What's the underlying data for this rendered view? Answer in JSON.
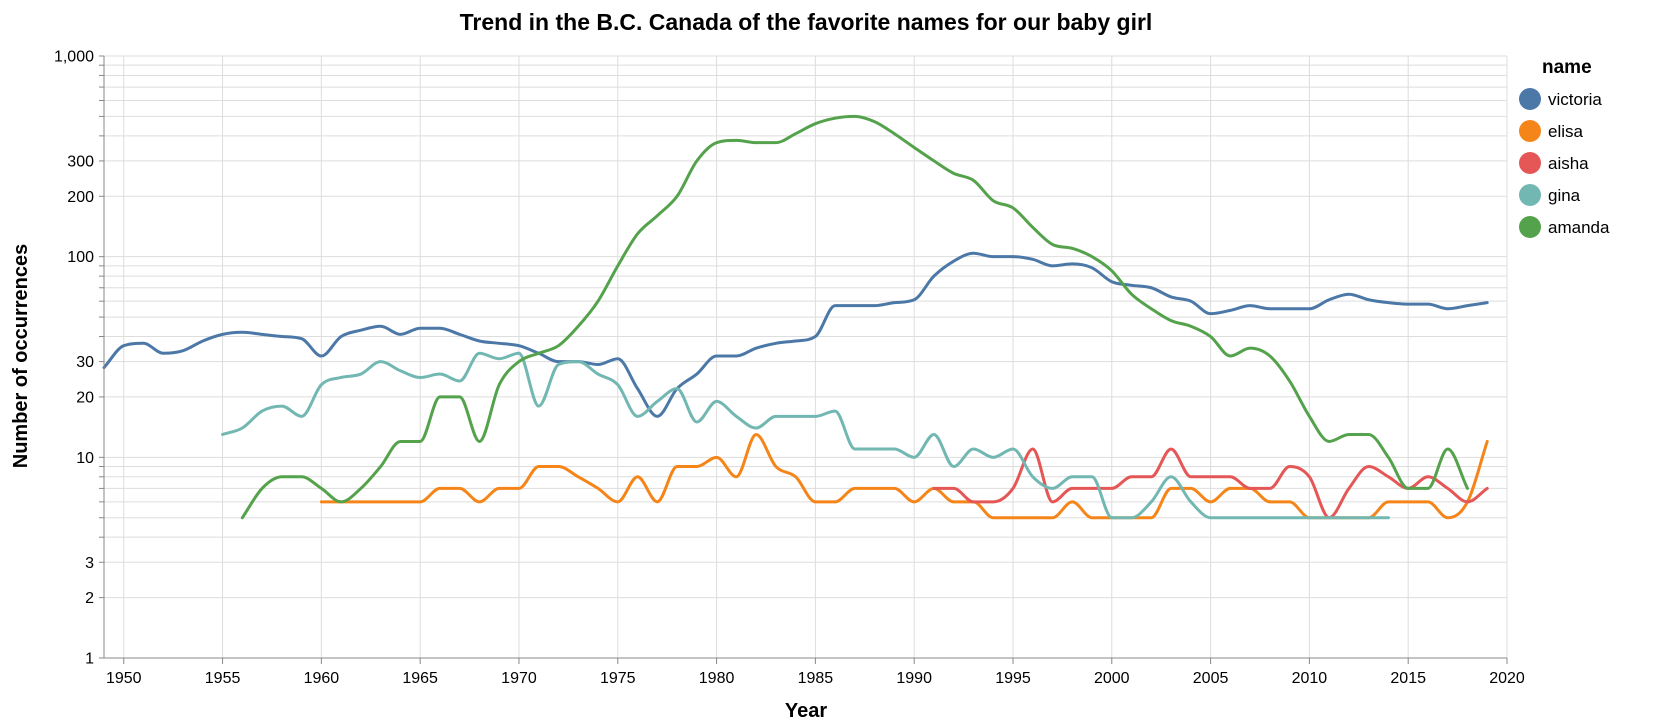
{
  "chart_data": {
    "type": "line",
    "title": "Trend in the B.C. Canada of the favorite names for our baby girl",
    "xlabel": "Year",
    "ylabel": "Number of occurrences",
    "xlim": [
      1949,
      2020
    ],
    "ylim": [
      1,
      1000
    ],
    "y_scale": "log",
    "x_ticks": [
      1950,
      1955,
      1960,
      1965,
      1970,
      1975,
      1980,
      1985,
      1990,
      1995,
      2000,
      2005,
      2010,
      2015,
      2020
    ],
    "y_ticks": [
      {
        "value": 1,
        "label": "1"
      },
      {
        "value": 2,
        "label": "2"
      },
      {
        "value": 3,
        "label": "3"
      },
      {
        "value": 10,
        "label": "10"
      },
      {
        "value": 20,
        "label": "20"
      },
      {
        "value": 30,
        "label": "30"
      },
      {
        "value": 100,
        "label": "100"
      },
      {
        "value": 200,
        "label": "200"
      },
      {
        "value": 300,
        "label": "300"
      },
      {
        "value": 1000,
        "label": "1,000"
      }
    ],
    "grid": true,
    "legend": {
      "title": "name",
      "position": "right"
    },
    "series": [
      {
        "name": "victoria",
        "color": "#4c78a8",
        "x": [
          1949,
          1950,
          1951,
          1952,
          1953,
          1954,
          1955,
          1956,
          1957,
          1958,
          1959,
          1960,
          1961,
          1962,
          1963,
          1964,
          1965,
          1966,
          1967,
          1968,
          1969,
          1970,
          1971,
          1972,
          1973,
          1974,
          1975,
          1976,
          1977,
          1978,
          1979,
          1980,
          1981,
          1982,
          1983,
          1984,
          1985,
          1986,
          1987,
          1988,
          1989,
          1990,
          1991,
          1992,
          1993,
          1994,
          1995,
          1996,
          1997,
          1998,
          1999,
          2000,
          2001,
          2002,
          2003,
          2004,
          2005,
          2006,
          2007,
          2008,
          2009,
          2010,
          2011,
          2012,
          2013,
          2014,
          2015,
          2016,
          2017,
          2018,
          2019
        ],
        "values": [
          28,
          36,
          37,
          33,
          34,
          38,
          41,
          42,
          41,
          40,
          39,
          32,
          40,
          43,
          45,
          41,
          44,
          44,
          41,
          38,
          37,
          36,
          33,
          30,
          30,
          29,
          31,
          22,
          16,
          22,
          26,
          32,
          32,
          35,
          37,
          38,
          40,
          57,
          57,
          57,
          59,
          61,
          80,
          95,
          104,
          100,
          100,
          97,
          90,
          92,
          88,
          75,
          72,
          70,
          63,
          60,
          52,
          54,
          57,
          55,
          55,
          55,
          61,
          65,
          61,
          59,
          58,
          58,
          55,
          57,
          59
        ]
      },
      {
        "name": "elisa",
        "color": "#f58518",
        "x": [
          1960,
          1961,
          1962,
          1963,
          1964,
          1965,
          1966,
          1967,
          1968,
          1969,
          1970,
          1971,
          1972,
          1973,
          1974,
          1975,
          1976,
          1977,
          1978,
          1979,
          1980,
          1981,
          1982,
          1983,
          1984,
          1985,
          1986,
          1987,
          1988,
          1989,
          1990,
          1991,
          1992,
          1993,
          1994,
          1995,
          1996,
          1997,
          1998,
          1999,
          2000,
          2001,
          2002,
          2003,
          2004,
          2005,
          2006,
          2007,
          2008,
          2009,
          2010,
          2011,
          2012,
          2013,
          2014,
          2015,
          2016,
          2017,
          2018,
          2019
        ],
        "values": [
          6,
          6,
          6,
          6,
          6,
          6,
          7,
          7,
          6,
          7,
          7,
          9,
          9,
          8,
          7,
          6,
          8,
          6,
          9,
          9,
          10,
          8,
          13,
          9,
          8,
          6,
          6,
          7,
          7,
          7,
          6,
          7,
          6,
          6,
          5,
          5,
          5,
          5,
          6,
          5,
          5,
          5,
          5,
          7,
          7,
          6,
          7,
          7,
          6,
          6,
          5,
          5,
          5,
          5,
          6,
          6,
          6,
          5,
          6,
          12
        ]
      },
      {
        "name": "aisha",
        "color": "#e45756",
        "x": [
          1991,
          1992,
          1993,
          1994,
          1995,
          1996,
          1997,
          1998,
          1999,
          2000,
          2001,
          2002,
          2003,
          2004,
          2005,
          2006,
          2007,
          2008,
          2009,
          2010,
          2011,
          2012,
          2013,
          2014,
          2015,
          2016,
          2017,
          2018,
          2019
        ],
        "values": [
          7,
          7,
          6,
          6,
          7,
          11,
          6,
          7,
          7,
          7,
          8,
          8,
          11,
          8,
          8,
          8,
          7,
          7,
          9,
          8,
          5,
          7,
          9,
          8,
          7,
          8,
          7,
          6,
          7
        ]
      },
      {
        "name": "gina",
        "color": "#72b7b2",
        "x": [
          1955,
          1956,
          1957,
          1958,
          1959,
          1960,
          1961,
          1962,
          1963,
          1964,
          1965,
          1966,
          1967,
          1968,
          1969,
          1970,
          1971,
          1972,
          1973,
          1974,
          1975,
          1976,
          1977,
          1978,
          1979,
          1980,
          1981,
          1982,
          1983,
          1984,
          1985,
          1986,
          1987,
          1988,
          1989,
          1990,
          1991,
          1992,
          1993,
          1994,
          1995,
          1996,
          1997,
          1998,
          1999,
          2000,
          2001,
          2002,
          2003,
          2004,
          2005,
          2006,
          2007,
          2008,
          2009,
          2010,
          2011,
          2012,
          2013,
          2014
        ],
        "values": [
          13,
          14,
          17,
          18,
          16,
          23,
          25,
          26,
          30,
          27,
          25,
          26,
          24,
          33,
          31,
          33,
          18,
          29,
          30,
          26,
          23,
          16,
          19,
          22,
          15,
          19,
          16,
          14,
          16,
          16,
          16,
          17,
          11,
          11,
          11,
          10,
          13,
          9,
          11,
          10,
          11,
          8,
          7,
          8,
          8,
          5,
          5,
          6,
          8,
          6,
          5,
          5,
          5,
          5,
          5,
          5,
          5,
          5,
          5,
          5
        ]
      },
      {
        "name": "amanda",
        "color": "#54a24b",
        "x": [
          1956,
          1957,
          1958,
          1959,
          1960,
          1961,
          1962,
          1963,
          1964,
          1965,
          1966,
          1967,
          1968,
          1969,
          1970,
          1971,
          1972,
          1973,
          1974,
          1975,
          1976,
          1977,
          1978,
          1979,
          1980,
          1981,
          1982,
          1983,
          1984,
          1985,
          1986,
          1987,
          1988,
          1989,
          1990,
          1991,
          1992,
          1993,
          1994,
          1995,
          1996,
          1997,
          1998,
          1999,
          2000,
          2001,
          2002,
          2003,
          2004,
          2005,
          2006,
          2007,
          2008,
          2009,
          2010,
          2011,
          2012,
          2013,
          2014,
          2015,
          2016,
          2017,
          2018
        ],
        "values": [
          5,
          7,
          8,
          8,
          7,
          6,
          7,
          9,
          12,
          12,
          20,
          20,
          12,
          23,
          30,
          33,
          36,
          45,
          60,
          90,
          130,
          160,
          200,
          300,
          370,
          380,
          370,
          370,
          410,
          460,
          490,
          500,
          470,
          410,
          350,
          300,
          260,
          240,
          190,
          175,
          140,
          115,
          110,
          100,
          85,
          65,
          55,
          48,
          45,
          40,
          32,
          35,
          32,
          24,
          16,
          12,
          13,
          13,
          10,
          7,
          7,
          11,
          7
        ]
      }
    ]
  }
}
